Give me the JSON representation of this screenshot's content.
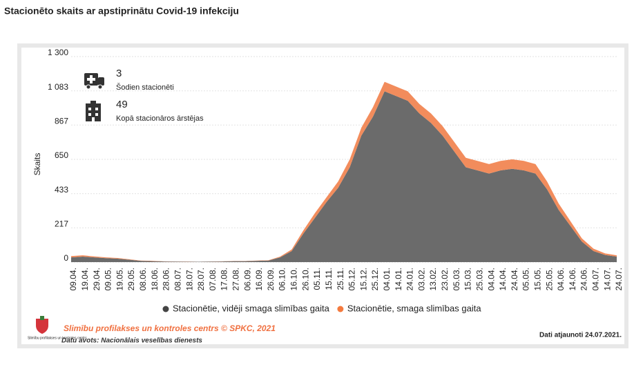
{
  "chart_data": {
    "type": "stacked-area",
    "title": "Stacionēto skaits ar apstiprinātu Covid-19 infekciju",
    "y_label": "Skaits",
    "categories": [
      "09.04.",
      "19.04.",
      "29.04.",
      "09.05.",
      "19.05.",
      "29.05.",
      "08.06.",
      "18.06.",
      "28.06.",
      "08.07.",
      "18.07.",
      "28.07.",
      "07.08.",
      "17.08.",
      "27.08.",
      "06.09.",
      "16.09.",
      "26.09.",
      "06.10.",
      "16.10.",
      "26.10.",
      "05.11.",
      "15.11.",
      "25.11.",
      "05.12.",
      "15.12.",
      "25.12.",
      "04.01.",
      "14.01.",
      "24.01.",
      "03.02.",
      "13.02.",
      "23.02.",
      "05.03.",
      "15.03.",
      "25.03.",
      "04.04.",
      "14.04.",
      "24.04.",
      "05.05.",
      "15.05.",
      "25.05.",
      "04.06.",
      "14.06.",
      "24.06.",
      "04.07.",
      "14.07.",
      "24.07."
    ],
    "series": [
      {
        "name": "Stacionētie, vidēji smaga slimības gaita",
        "color": "#6b6b6b",
        "values": [
          30,
          35,
          30,
          25,
          22,
          15,
          8,
          6,
          4,
          3,
          2,
          2,
          3,
          4,
          6,
          6,
          8,
          10,
          30,
          70,
          180,
          280,
          380,
          470,
          600,
          800,
          920,
          1080,
          1050,
          1020,
          940,
          880,
          800,
          700,
          600,
          580,
          560,
          580,
          590,
          580,
          560,
          460,
          330,
          230,
          130,
          70,
          45,
          35
        ]
      },
      {
        "name": "Stacionētie, smaga slimības gaita",
        "color": "#f28c5c",
        "values": [
          8,
          8,
          6,
          5,
          4,
          3,
          2,
          2,
          1,
          1,
          1,
          0,
          1,
          1,
          1,
          1,
          2,
          2,
          5,
          10,
          20,
          30,
          30,
          40,
          50,
          50,
          60,
          60,
          60,
          60,
          60,
          60,
          60,
          60,
          60,
          60,
          60,
          60,
          60,
          60,
          60,
          50,
          40,
          30,
          20,
          15,
          10,
          8
        ]
      }
    ],
    "ylim": [
      0,
      1300
    ],
    "yticks": [
      0,
      217,
      433,
      650,
      867,
      {
        "value": 1083,
        "label": "1 083"
      },
      {
        "value": 1300,
        "label": "1 300"
      }
    ],
    "grid": true
  },
  "stats": [
    {
      "value": "3",
      "label": "Šodien stacionēti"
    },
    {
      "value": "49",
      "label": "Kopā stacionāros ārstējas"
    }
  ],
  "footer": {
    "org": "Slimību profilakses un kontroles centrs © SPKC, 2021",
    "source": "Datu avots: Nacionālais veselības dienests",
    "updated": "Dati atjaunoti 24.07.2021.",
    "logo_text": "Slimību profilakses un kontroles centrs"
  }
}
